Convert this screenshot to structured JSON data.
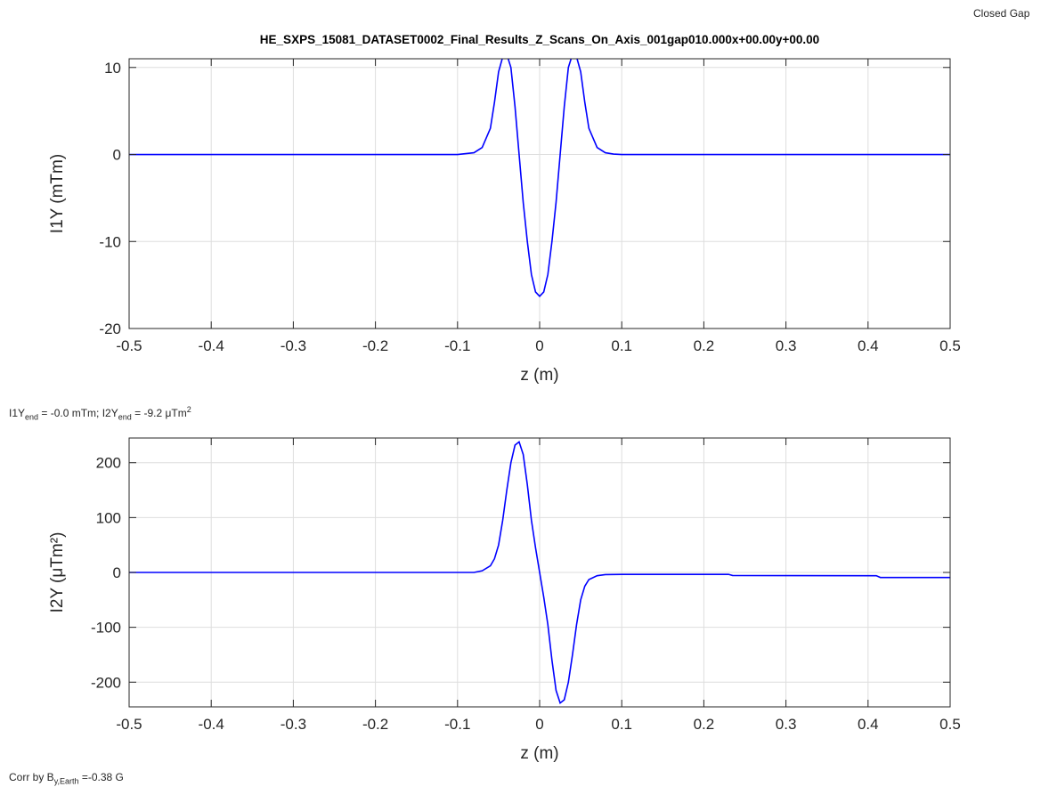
{
  "corner_label": "Closed Gap",
  "between_note": {
    "p1": "I1Y",
    "s1": "end",
    "p2": " = -0.0 mTm; I2Y",
    "s2": "end",
    "p3": " = -9.2 μTm",
    "sup": "2"
  },
  "bottom_note": {
    "p1": "Corr by B",
    "sub": "y,Earth",
    "p2": " =-0.38 G"
  },
  "colors": {
    "line": "#0000ff",
    "grid": "#dedede",
    "axis": "#262626"
  },
  "chart_data": [
    {
      "type": "line",
      "title": "HE_SXPS_15081_DATASET0002_Final_Results_Z_Scans_On_Axis_001gap010.000x+00.00y+00.00",
      "xlabel": "z (m)",
      "ylabel": "I1Y (mTm)",
      "xlim": [
        -0.5,
        0.5
      ],
      "ylim": [
        -20,
        11
      ],
      "xticks": [
        -0.5,
        -0.4,
        -0.3,
        -0.2,
        -0.1,
        0,
        0.1,
        0.2,
        0.3,
        0.4,
        0.5
      ],
      "xtick_labels": [
        "-0.5",
        "-0.4",
        "-0.3",
        "-0.2",
        "-0.1",
        "0",
        "0.1",
        "0.2",
        "0.3",
        "0.4",
        "0.5"
      ],
      "yticks": [
        -20,
        -10,
        0,
        10
      ],
      "ytick_labels": [
        "-20",
        "-10",
        "0",
        "10"
      ],
      "grid": true,
      "x": [
        -0.5,
        -0.1,
        -0.08,
        -0.07,
        -0.06,
        -0.055,
        -0.05,
        -0.045,
        -0.04,
        -0.035,
        -0.03,
        -0.025,
        -0.02,
        -0.015,
        -0.01,
        -0.005,
        0,
        0.005,
        0.01,
        0.015,
        0.02,
        0.025,
        0.03,
        0.035,
        0.04,
        0.045,
        0.05,
        0.055,
        0.06,
        0.07,
        0.08,
        0.09,
        0.1,
        0.5
      ],
      "y": [
        0,
        0,
        0.2,
        0.8,
        3.0,
        6.0,
        9.5,
        11.2,
        11.5,
        10.0,
        5.5,
        0,
        -5.5,
        -10.0,
        -13.8,
        -15.8,
        -16.3,
        -15.8,
        -13.8,
        -10.0,
        -5.5,
        0,
        5.5,
        10.0,
        11.5,
        11.2,
        9.5,
        6.0,
        3.0,
        0.8,
        0.2,
        0.05,
        0,
        0
      ]
    },
    {
      "type": "line",
      "xlabel": "z (m)",
      "ylabel": "I2Y (μTm²)",
      "xlim": [
        -0.5,
        0.5
      ],
      "ylim": [
        -245,
        245
      ],
      "xticks": [
        -0.5,
        -0.4,
        -0.3,
        -0.2,
        -0.1,
        0,
        0.1,
        0.2,
        0.3,
        0.4,
        0.5
      ],
      "xtick_labels": [
        "-0.5",
        "-0.4",
        "-0.3",
        "-0.2",
        "-0.1",
        "0",
        "0.1",
        "0.2",
        "0.3",
        "0.4",
        "0.5"
      ],
      "yticks": [
        -200,
        -100,
        0,
        100,
        200
      ],
      "ytick_labels": [
        "-200",
        "-100",
        "0",
        "100",
        "200"
      ],
      "grid": true,
      "x": [
        -0.5,
        -0.08,
        -0.07,
        -0.06,
        -0.055,
        -0.05,
        -0.045,
        -0.04,
        -0.035,
        -0.03,
        -0.025,
        -0.02,
        -0.015,
        -0.01,
        -0.005,
        0,
        0.005,
        0.01,
        0.015,
        0.02,
        0.025,
        0.03,
        0.035,
        0.04,
        0.045,
        0.05,
        0.055,
        0.06,
        0.07,
        0.08,
        0.1,
        0.23,
        0.235,
        0.41,
        0.415,
        0.5
      ],
      "y": [
        0,
        0,
        3,
        12,
        25,
        50,
        95,
        150,
        200,
        232,
        238,
        215,
        160,
        95,
        45,
        0,
        -45,
        -95,
        -160,
        -215,
        -238,
        -232,
        -200,
        -150,
        -95,
        -50,
        -25,
        -13,
        -6,
        -4,
        -3.5,
        -3.5,
        -5.5,
        -6,
        -9.2,
        -9.2
      ]
    }
  ]
}
